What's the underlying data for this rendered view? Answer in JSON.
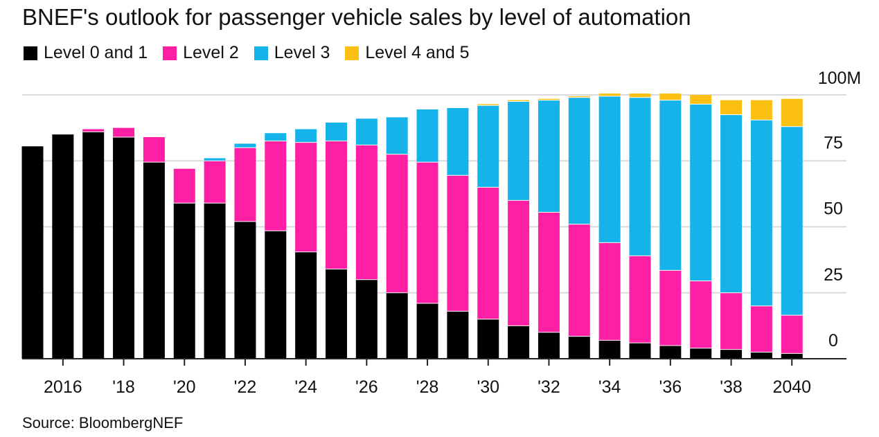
{
  "title": "BNEF's outlook for passenger vehicle sales by level of automation",
  "source": "Source: BloombergNEF",
  "colors": {
    "level01": "#000000",
    "level2": "#ff1fa5",
    "level3": "#16b3ea",
    "level45": "#fcc012",
    "grid": "#d9d9d9",
    "axis": "#222222"
  },
  "legend": [
    {
      "label": "Level 0 and 1",
      "color": "#000000"
    },
    {
      "label": "Level 2",
      "color": "#ff1fa5"
    },
    {
      "label": "Level 3",
      "color": "#16b3ea"
    },
    {
      "label": "Level 4 and 5",
      "color": "#fcc012"
    }
  ],
  "chart_data": {
    "type": "bar",
    "stacked": true,
    "title": "BNEF's outlook for passenger vehicle sales by level of automation",
    "xlabel": "",
    "ylabel": "",
    "ylim": [
      0,
      100
    ],
    "yticks": [
      0,
      25,
      50,
      75
    ],
    "ytop_label": "100M",
    "categories": [
      "2015",
      "2016",
      "2017",
      "2018",
      "2019",
      "2020",
      "2021",
      "2022",
      "2023",
      "2024",
      "2025",
      "2026",
      "2027",
      "2028",
      "2029",
      "2030",
      "2031",
      "2032",
      "2033",
      "2034",
      "2035",
      "2036",
      "2037",
      "2038",
      "2039",
      "2040"
    ],
    "xtick_labels": [
      {
        "category": "2016",
        "label": "2016"
      },
      {
        "category": "2018",
        "label": "'18"
      },
      {
        "category": "2020",
        "label": "'20"
      },
      {
        "category": "2022",
        "label": "'22"
      },
      {
        "category": "2024",
        "label": "'24"
      },
      {
        "category": "2026",
        "label": "'26"
      },
      {
        "category": "2028",
        "label": "'28"
      },
      {
        "category": "2030",
        "label": "'30"
      },
      {
        "category": "2032",
        "label": "'32"
      },
      {
        "category": "2034",
        "label": "'34"
      },
      {
        "category": "2036",
        "label": "'36"
      },
      {
        "category": "2038",
        "label": "'38"
      },
      {
        "category": "2040",
        "label": "2040"
      }
    ],
    "series": [
      {
        "name": "Level 0 and 1",
        "color": "#000000",
        "values": [
          80.5,
          85,
          86,
          84,
          74.5,
          59,
          59,
          52,
          48.5,
          40.5,
          34,
          30,
          25,
          21,
          18,
          15,
          12.5,
          10,
          8.5,
          7,
          6,
          5,
          4,
          3.5,
          2.5,
          2
        ]
      },
      {
        "name": "Level 2",
        "color": "#ff1fa5",
        "values": [
          0,
          0,
          1,
          3.5,
          9.5,
          13,
          16,
          28,
          34,
          41.5,
          48.5,
          51,
          52.5,
          53.5,
          51.5,
          50,
          47.5,
          45.5,
          42.5,
          37,
          33,
          28.5,
          25.5,
          21.5,
          17.5,
          14.5
        ]
      },
      {
        "name": "Level 3",
        "color": "#16b3ea",
        "values": [
          0,
          0,
          0,
          0,
          0,
          0,
          1,
          1.5,
          3,
          5,
          7,
          10,
          14,
          20,
          25.5,
          31,
          37.5,
          42.5,
          48,
          55.5,
          60,
          64.5,
          67,
          67.5,
          70.5,
          71.5
        ]
      },
      {
        "name": "Level 4 and 5",
        "color": "#fcc012",
        "values": [
          0,
          0,
          0,
          0,
          0,
          0,
          0,
          0,
          0,
          0,
          0,
          0,
          0,
          0,
          0,
          0.5,
          0.5,
          0.5,
          0.5,
          1,
          1.5,
          2.5,
          3.5,
          5.5,
          7.5,
          10.5
        ]
      }
    ]
  }
}
